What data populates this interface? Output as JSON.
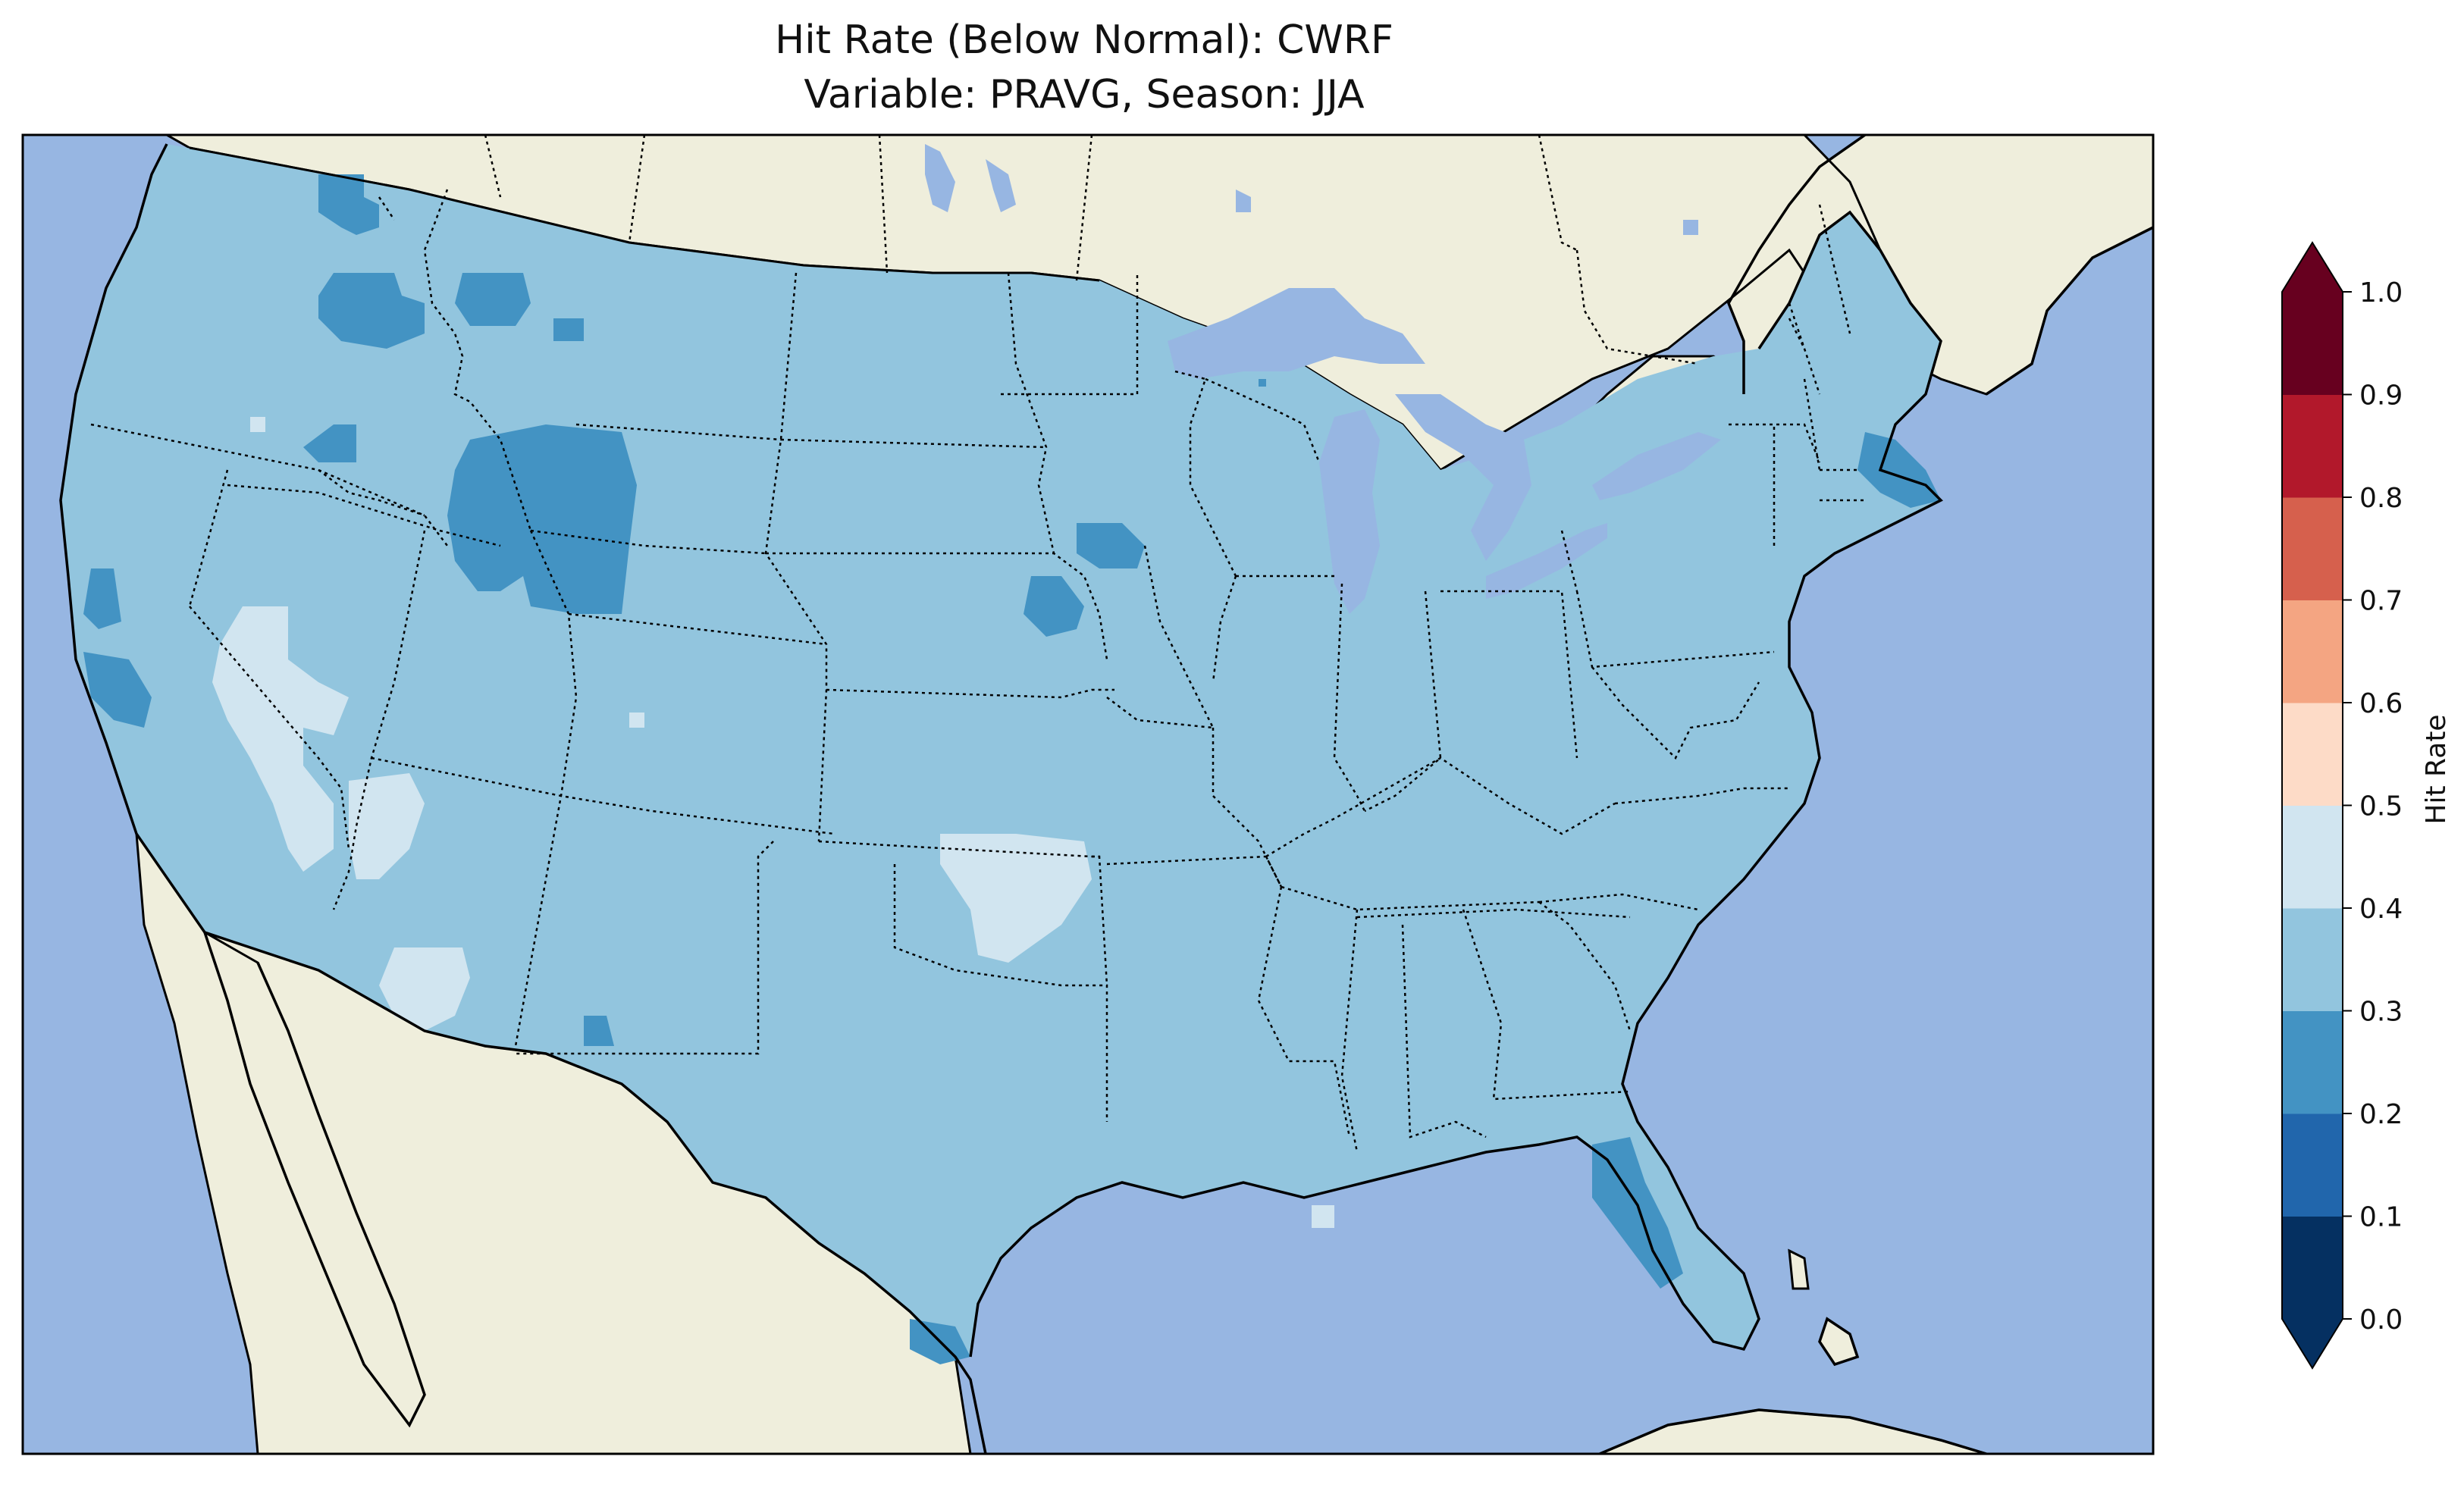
{
  "title_line1": "Hit Rate (Below Normal): CWRF",
  "title_line2": "Variable: PRAVG, Season: JJA",
  "colors": {
    "ocean": "#97b6e2",
    "land": "#efeedc",
    "coast": "#000000",
    "state_border": "#000000"
  },
  "colorbar": {
    "label": "Hit Rate",
    "ticks": [
      "0.0",
      "0.1",
      "0.2",
      "0.3",
      "0.4",
      "0.5",
      "0.6",
      "0.7",
      "0.8",
      "0.9",
      "1.0"
    ],
    "bins": [
      {
        "range": [
          0.0,
          0.1
        ],
        "color": "#053061"
      },
      {
        "range": [
          0.1,
          0.2
        ],
        "color": "#2166ac"
      },
      {
        "range": [
          0.2,
          0.3
        ],
        "color": "#4393c3"
      },
      {
        "range": [
          0.3,
          0.4
        ],
        "color": "#92c5de"
      },
      {
        "range": [
          0.4,
          0.5
        ],
        "color": "#d1e5f0"
      },
      {
        "range": [
          0.5,
          0.6
        ],
        "color": "#fddbc7"
      },
      {
        "range": [
          0.6,
          0.7
        ],
        "color": "#f4a582"
      },
      {
        "range": [
          0.7,
          0.8
        ],
        "color": "#d6604d"
      },
      {
        "range": [
          0.8,
          0.9
        ],
        "color": "#b2182b"
      },
      {
        "range": [
          0.9,
          1.0
        ],
        "color": "#67001f"
      }
    ],
    "under_color": "#053061",
    "over_color": "#67001f",
    "extend": "both"
  },
  "field": {
    "dominant_bin": "0.3-0.4",
    "regions_0_2_to_0_3": [
      "northern Idaho / Washington",
      "western Wyoming",
      "central California coast",
      "northern Kansas / southern Nebraska",
      "Massachusetts",
      "central Florida",
      "southern Texas",
      "southwest New Mexico"
    ],
    "regions_0_4_to_0_5": [
      "western Nevada",
      "western Oklahoma",
      "southern Nevada / northwest Arizona",
      "southeast California"
    ]
  }
}
